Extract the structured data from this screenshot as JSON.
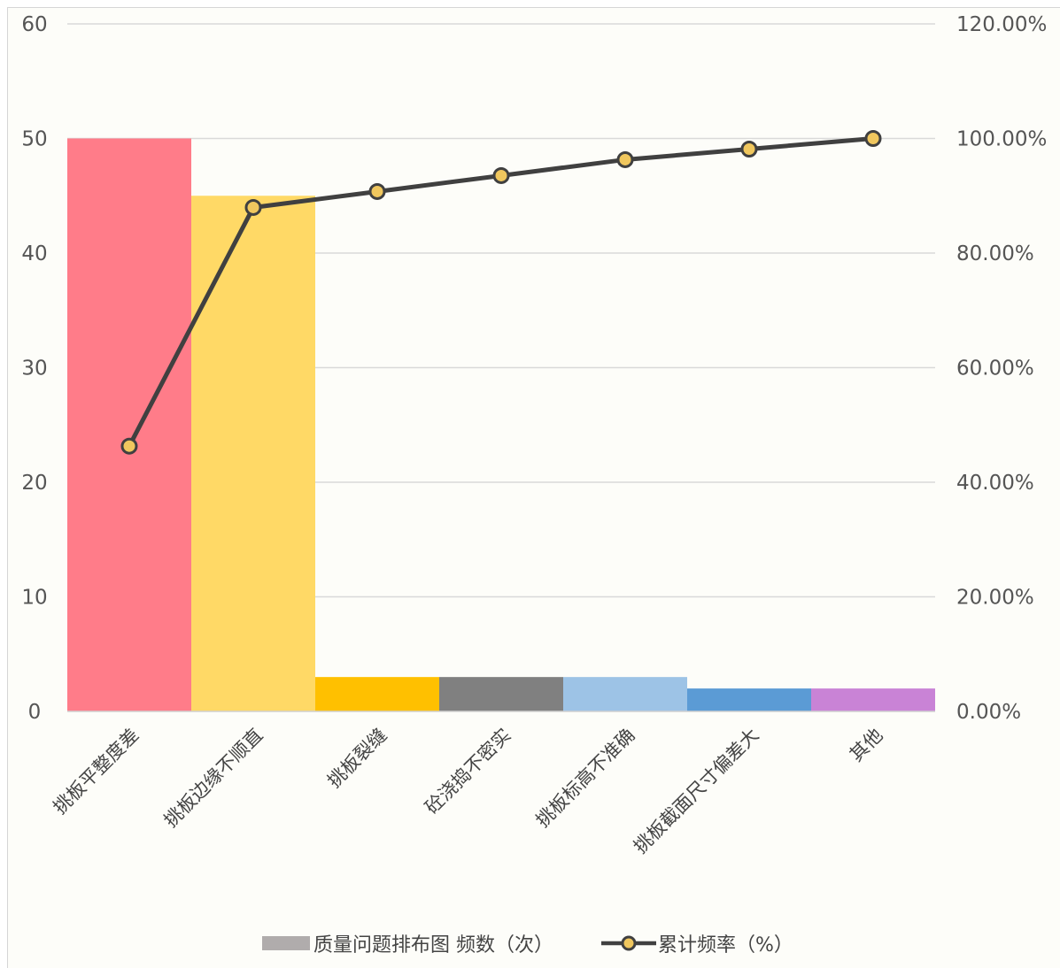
{
  "chart_data": {
    "type": "bar",
    "combo": "bar + line (pareto)",
    "categories": [
      "挑板平整度差",
      "挑板边缘不顺直",
      "挑板裂缝",
      "砼浇捣不密实",
      "挑板标高不准确",
      "挑板截面尺寸偏差大",
      "其他"
    ],
    "series": [
      {
        "name": "质量问题排布图 频数（次）",
        "type": "bar",
        "axis": "left",
        "values": [
          50,
          45,
          3,
          3,
          3,
          2,
          2
        ],
        "colors": [
          "#ff7c89",
          "#ffd966",
          "#ffc000",
          "#808080",
          "#9dc3e6",
          "#5b9bd5",
          "#c983d6"
        ]
      },
      {
        "name": "累计频率（%）",
        "type": "line",
        "axis": "right",
        "values": [
          46.3,
          87.96,
          90.74,
          93.52,
          96.3,
          98.15,
          100.0
        ],
        "color": "#404040",
        "marker_color": "#f0c75e"
      }
    ],
    "y_left": {
      "ylim": [
        0,
        60
      ],
      "ticks": [
        "0",
        "10",
        "20",
        "30",
        "40",
        "50",
        "60"
      ]
    },
    "y_right": {
      "ylim": [
        0,
        120
      ],
      "ticks": [
        "0.00%",
        "20.00%",
        "40.00%",
        "60.00%",
        "80.00%",
        "100.00%",
        "120.00%"
      ]
    },
    "grid": true,
    "legend_position": "bottom",
    "legend_bar_swatch": "#b0acac"
  }
}
